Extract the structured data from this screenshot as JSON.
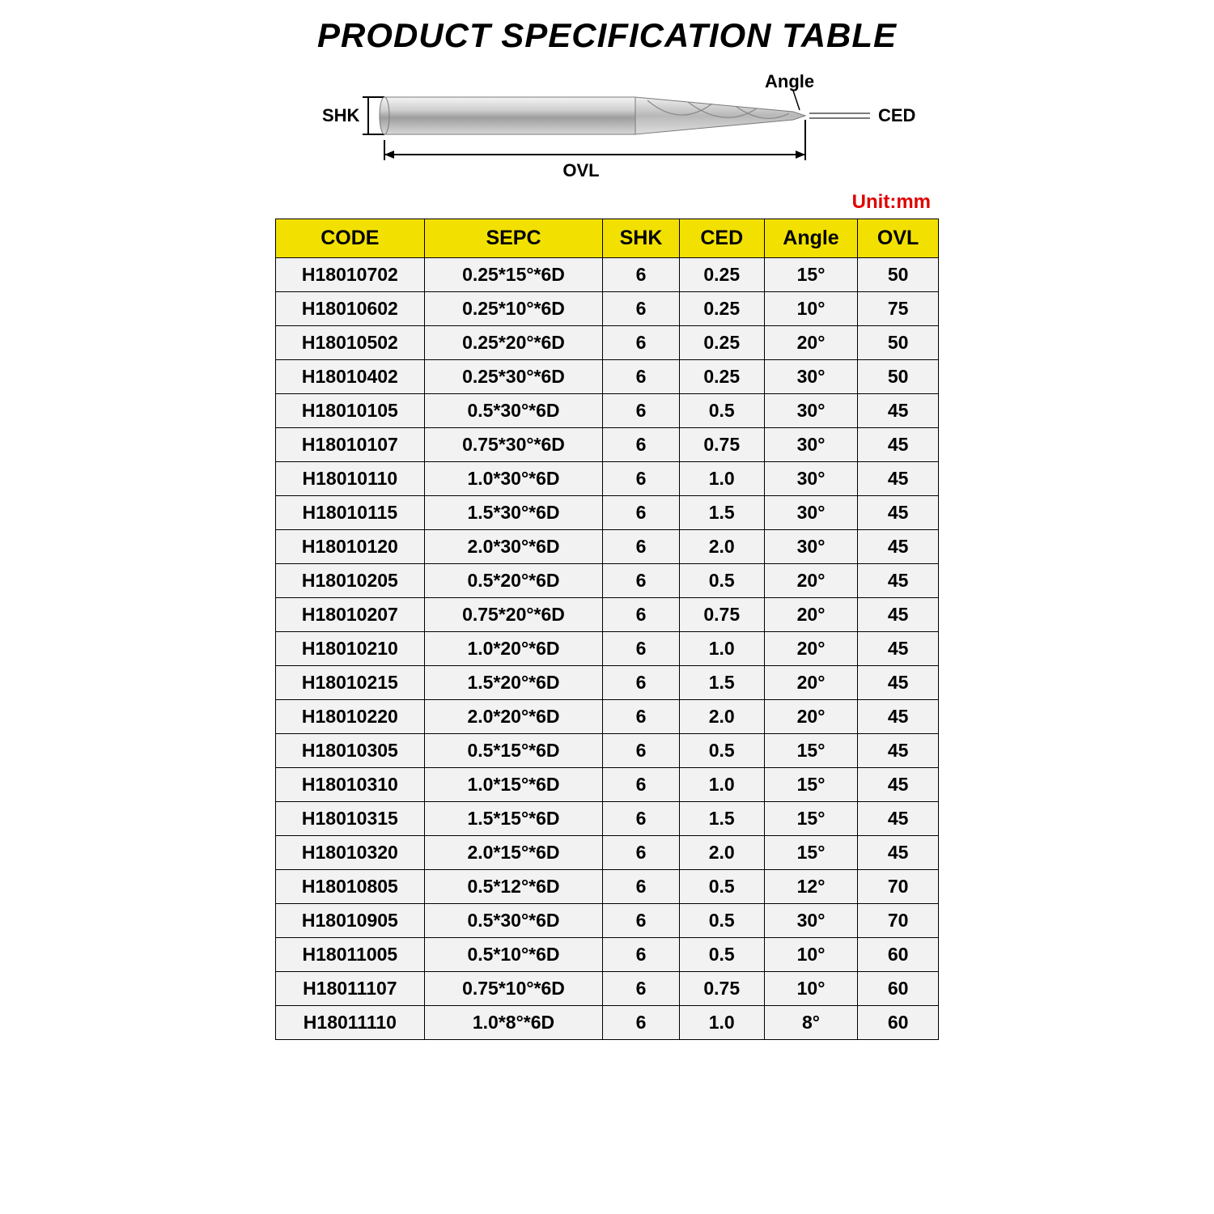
{
  "title": "PRODUCT SPECIFICATION TABLE",
  "unit_label": "Unit:mm",
  "diagram": {
    "labels": {
      "shk": "SHK",
      "ovl": "OVL",
      "angle": "Angle",
      "ced": "CED"
    },
    "colors": {
      "line": "#000000",
      "tool_body": "#c9c9c9",
      "tool_light": "#e9e9e9",
      "tool_dark": "#9a9a9a",
      "ced_line": "#7a7a7a"
    }
  },
  "table": {
    "header_bg": "#f2e100",
    "body_bg": "#f2f2f2",
    "border_color": "#000000",
    "columns": [
      "CODE",
      "SEPC",
      "SHK",
      "CED",
      "Angle",
      "OVL"
    ],
    "rows": [
      [
        "H18010702",
        "0.25*15°*6D",
        "6",
        "0.25",
        "15°",
        "50"
      ],
      [
        "H18010602",
        "0.25*10°*6D",
        "6",
        "0.25",
        "10°",
        "75"
      ],
      [
        "H18010502",
        "0.25*20°*6D",
        "6",
        "0.25",
        "20°",
        "50"
      ],
      [
        "H18010402",
        "0.25*30°*6D",
        "6",
        "0.25",
        "30°",
        "50"
      ],
      [
        "H18010105",
        "0.5*30°*6D",
        "6",
        "0.5",
        "30°",
        "45"
      ],
      [
        "H18010107",
        "0.75*30°*6D",
        "6",
        "0.75",
        "30°",
        "45"
      ],
      [
        "H18010110",
        "1.0*30°*6D",
        "6",
        "1.0",
        "30°",
        "45"
      ],
      [
        "H18010115",
        "1.5*30°*6D",
        "6",
        "1.5",
        "30°",
        "45"
      ],
      [
        "H18010120",
        "2.0*30°*6D",
        "6",
        "2.0",
        "30°",
        "45"
      ],
      [
        "H18010205",
        "0.5*20°*6D",
        "6",
        "0.5",
        "20°",
        "45"
      ],
      [
        "H18010207",
        "0.75*20°*6D",
        "6",
        "0.75",
        "20°",
        "45"
      ],
      [
        "H18010210",
        "1.0*20°*6D",
        "6",
        "1.0",
        "20°",
        "45"
      ],
      [
        "H18010215",
        "1.5*20°*6D",
        "6",
        "1.5",
        "20°",
        "45"
      ],
      [
        "H18010220",
        "2.0*20°*6D",
        "6",
        "2.0",
        "20°",
        "45"
      ],
      [
        "H18010305",
        "0.5*15°*6D",
        "6",
        "0.5",
        "15°",
        "45"
      ],
      [
        "H18010310",
        "1.0*15°*6D",
        "6",
        "1.0",
        "15°",
        "45"
      ],
      [
        "H18010315",
        "1.5*15°*6D",
        "6",
        "1.5",
        "15°",
        "45"
      ],
      [
        "H18010320",
        "2.0*15°*6D",
        "6",
        "2.0",
        "15°",
        "45"
      ],
      [
        "H18010805",
        "0.5*12°*6D",
        "6",
        "0.5",
        "12°",
        "70"
      ],
      [
        "H18010905",
        "0.5*30°*6D",
        "6",
        "0.5",
        "30°",
        "70"
      ],
      [
        "H18011005",
        "0.5*10°*6D",
        "6",
        "0.5",
        "10°",
        "60"
      ],
      [
        "H18011107",
        "0.75*10°*6D",
        "6",
        "0.75",
        "10°",
        "60"
      ],
      [
        "H18011110",
        "1.0*8°*6D",
        "6",
        "1.0",
        "8°",
        "60"
      ]
    ]
  }
}
